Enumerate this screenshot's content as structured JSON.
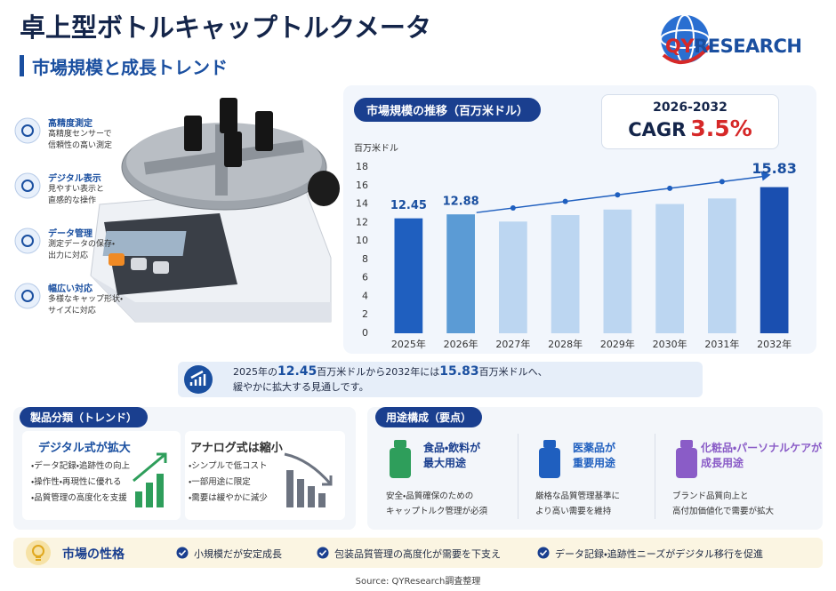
{
  "header": {
    "title": "卓上型ボトルキャップトルクメータ",
    "subtitle": "市場規模と成長トレンド"
  },
  "logo": {
    "mark": "QY",
    "text": "RESEARCH"
  },
  "features": [
    {
      "title": "高精度測定",
      "lines": [
        "高精度センサーで",
        "信頼性の高い測定"
      ]
    },
    {
      "title": "デジタル表示",
      "lines": [
        "見やすい表示と",
        "直感的な操作"
      ]
    },
    {
      "title": "データ管理",
      "lines": [
        "測定データの保存・",
        "出力に対応"
      ]
    },
    {
      "title": "幅広い対応",
      "lines": [
        "多様なキャップ形状・",
        "サイズに対応"
      ]
    }
  ],
  "chart_data": {
    "type": "bar",
    "title": "市場規模の推移（百万米ドル）",
    "y_label": "百万米ドル",
    "categories": [
      "2025年",
      "2026年",
      "2027年",
      "2028年",
      "2029年",
      "2030年",
      "2031年",
      "2032年"
    ],
    "values": [
      12.45,
      12.88,
      12.1,
      12.8,
      13.4,
      14.0,
      14.6,
      15.83
    ],
    "value_labels": [
      "12.45",
      "12.88",
      null,
      null,
      null,
      null,
      null,
      "15.83"
    ],
    "colors": [
      "#1f5fbf",
      "#5b9bd5",
      "#bcd6f1",
      "#bcd6f1",
      "#bcd6f1",
      "#bcd6f1",
      "#bcd6f1",
      "#1a4fb0"
    ],
    "ylim": [
      0,
      18
    ],
    "yticks": [
      0,
      2,
      4,
      6,
      8,
      10,
      12,
      14,
      16,
      18
    ],
    "grid": false
  },
  "cagr": {
    "period": "2026-2032",
    "label": "CAGR",
    "value": "3.5%"
  },
  "summary": {
    "parts": [
      "2025年の",
      "12.45",
      "百万米ドルから2032年には",
      "15.83",
      "百万米ドルへ、",
      "緩やかに拡大する見通しです。"
    ]
  },
  "product_types": {
    "heading": "製品分類（トレンド）",
    "cards": [
      {
        "title": "デジタル式が拡大",
        "items": [
          "・データ記録・追跡性の向上",
          "・操作性・再現性に優れる",
          "・品質管理の高度化を支援"
        ]
      },
      {
        "title": "アナログ式は縮小",
        "items": [
          "・シンプルで低コスト",
          "・一部用途に限定",
          "・需要は緩やかに減少"
        ]
      }
    ]
  },
  "applications": {
    "heading": "用途構成（要点）",
    "items": [
      {
        "title": [
          "食品・飲料が",
          "最大用途"
        ],
        "lines": [
          "安全・品質確保のための",
          "キャップトルク管理が必須"
        ]
      },
      {
        "title": [
          "医薬品が",
          "重要用途"
        ],
        "lines": [
          "厳格な品質管理基準に",
          "より高い需要を維持"
        ]
      },
      {
        "title": [
          "化粧品・パーソナルケアが",
          "成長用途"
        ],
        "lines": [
          "ブランド品質向上と",
          "高付加価値化で需要が拡大"
        ]
      }
    ]
  },
  "market_nature": {
    "heading": "市場の性格",
    "points": [
      "小規模だが安定成長",
      "包装品質管理の高度化が需要を下支え",
      "データ記録・追跡性ニーズがデジタル移行を促進"
    ]
  },
  "source": "Source: QYResearch調査整理"
}
